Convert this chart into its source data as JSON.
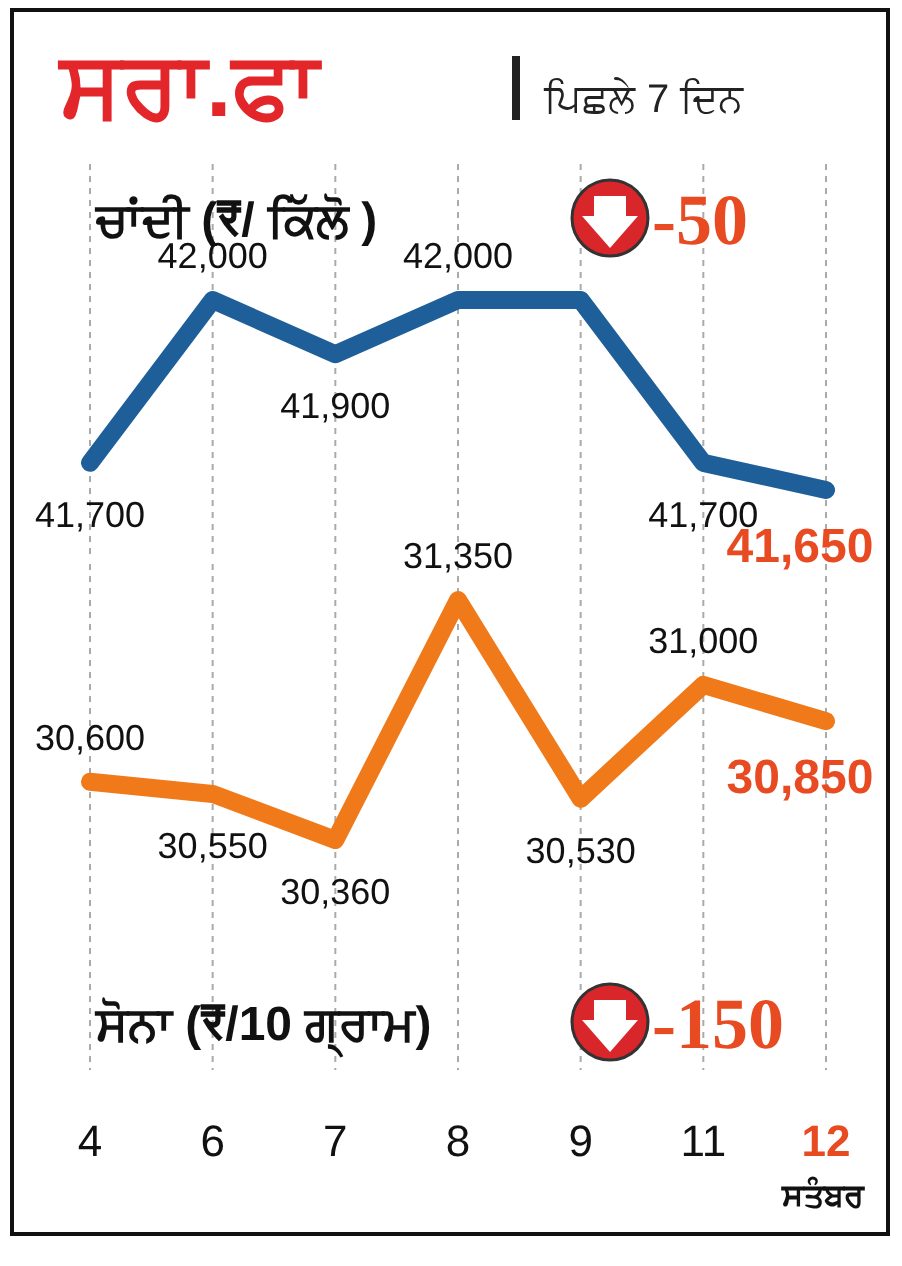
{
  "chart_data": [
    {
      "type": "line",
      "title": "ਸਰਾ.ਫਾ",
      "subtitle": "ਪਿਛਲੇ 7 ਦਿਨ",
      "annotations": [
        "ਚਾਂਦੀ (₹/ ਕਿੱਲੋ )",
        "-50"
      ],
      "categories": [
        "4",
        "6",
        "7",
        "8",
        "9",
        "11",
        "12"
      ],
      "grid": "x",
      "tick_labels": false,
      "series": [
        {
          "color": "#1f5f99",
          "values": [
            41700,
            42000,
            41900,
            42000,
            42000,
            41700,
            41650
          ],
          "value_labels": [
            "41,700",
            "42,000",
            "41,900",
            "42,000",
            null,
            "41,700",
            "41,650"
          ]
        }
      ]
    },
    {
      "type": "line",
      "xlabel": "ਸਤੰਬਰ",
      "annotations": [
        "ਸੋਨਾ (₹/10 ਗ੍ਰਾਮ)",
        "-150"
      ],
      "categories": [
        "4",
        "6",
        "7",
        "8",
        "9",
        "11",
        "12"
      ],
      "grid": "x",
      "tick_labels": "x",
      "series": [
        {
          "color": "#f07a1a",
          "values": [
            30600,
            30550,
            30360,
            31350,
            30530,
            31000,
            30850
          ],
          "value_labels": [
            "30,600",
            "30,550",
            "30,360",
            "31,350",
            "30,530",
            "31,000",
            "30,850"
          ]
        }
      ]
    }
  ]
}
